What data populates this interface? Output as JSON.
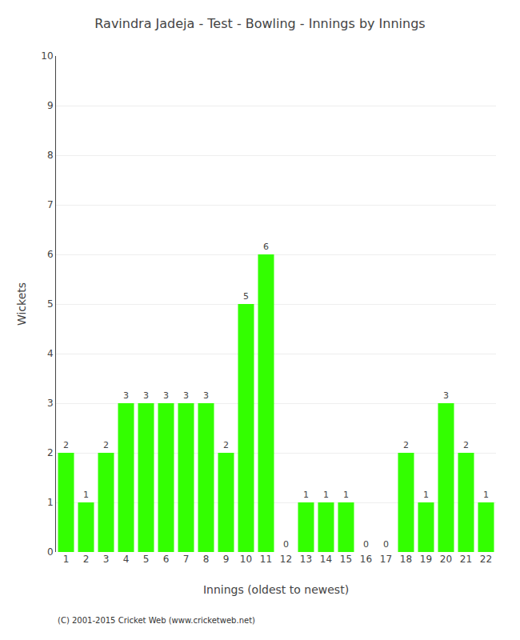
{
  "chart_data": {
    "type": "bar",
    "title": "Ravindra Jadeja - Test - Bowling - Innings by Innings",
    "xlabel": "Innings (oldest to newest)",
    "ylabel": "Wickets",
    "categories": [
      "1",
      "2",
      "3",
      "4",
      "5",
      "6",
      "7",
      "8",
      "9",
      "10",
      "11",
      "12",
      "13",
      "14",
      "15",
      "16",
      "17",
      "18",
      "19",
      "20",
      "21",
      "22"
    ],
    "values": [
      2,
      1,
      2,
      3,
      3,
      3,
      3,
      3,
      2,
      5,
      6,
      0,
      1,
      1,
      1,
      0,
      0,
      2,
      1,
      3,
      2,
      1
    ],
    "color": "#33ff00",
    "ylim": [
      0,
      10
    ],
    "yticks": [
      0,
      1,
      2,
      3,
      4,
      5,
      6,
      7,
      8,
      9,
      10
    ],
    "grid": true,
    "data_labels": true,
    "annotations": [
      "(C) 2001-2015 Cricket Web (www.cricketweb.net)"
    ]
  }
}
